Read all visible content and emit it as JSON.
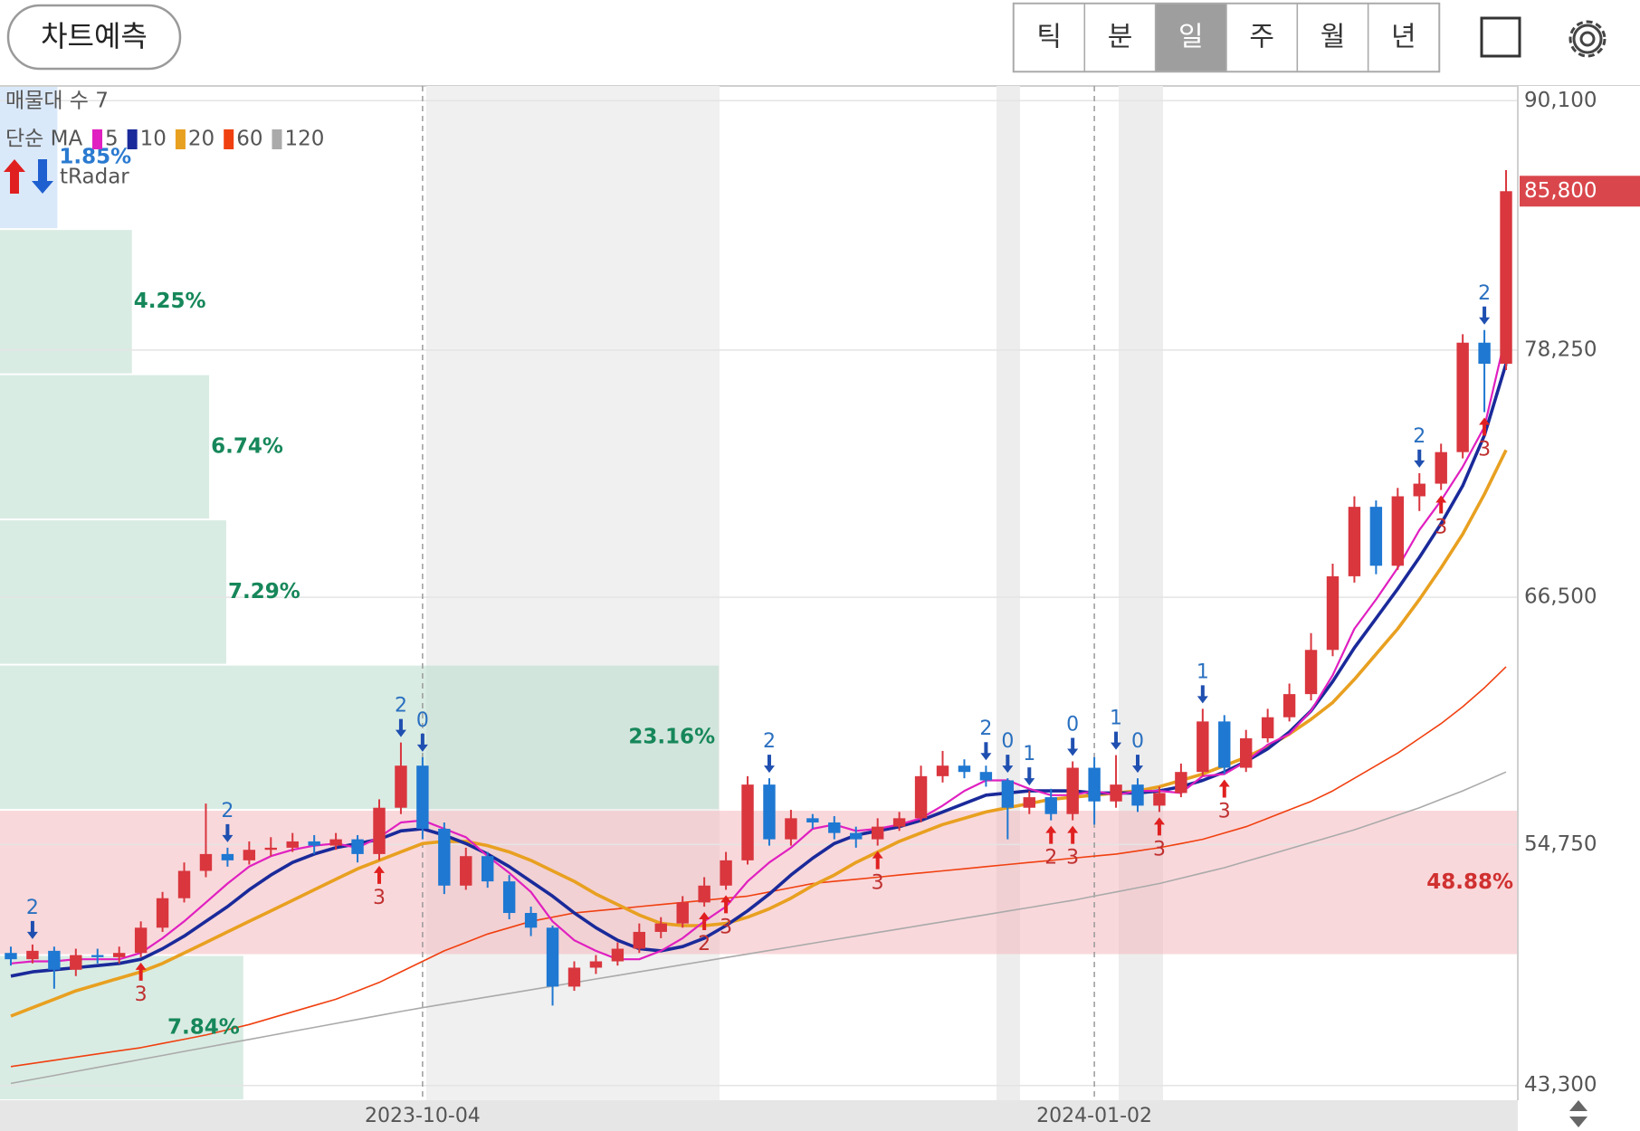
{
  "toolbar": {
    "predict_button": "차트예측",
    "periods": [
      "틱",
      "분",
      "일",
      "주",
      "월",
      "년"
    ],
    "selected_period": 2
  },
  "chart_data": {
    "type": "candlestick",
    "categories": [
      null,
      null,
      null,
      null,
      null,
      null,
      null,
      null,
      null,
      null,
      null,
      null,
      null,
      null,
      null,
      null,
      null,
      null,
      null,
      "2023-10-04",
      null,
      null,
      null,
      null,
      null,
      null,
      null,
      null,
      null,
      null,
      null,
      null,
      null,
      null,
      null,
      null,
      null,
      null,
      null,
      null,
      null,
      null,
      null,
      null,
      null,
      null,
      null,
      null,
      null,
      null,
      "2024-01-02",
      null,
      null,
      null,
      null,
      null,
      null,
      null,
      null,
      null,
      null,
      null,
      null,
      null,
      null,
      null,
      null,
      null,
      null,
      null
    ],
    "open": [
      49600,
      49300,
      49700,
      48800,
      49500,
      49400,
      49600,
      50800,
      52200,
      53500,
      54300,
      54000,
      54500,
      54600,
      54900,
      54700,
      55000,
      54300,
      56500,
      58500,
      55500,
      52800,
      54200,
      53000,
      51500,
      50800,
      48000,
      48900,
      49200,
      49800,
      50600,
      51000,
      52000,
      52800,
      54000,
      57600,
      55000,
      56000,
      55800,
      55300,
      55000,
      55600,
      56000,
      58000,
      58500,
      58200,
      57800,
      56500,
      57000,
      56200,
      58400,
      56800,
      57600,
      56600,
      57200,
      58200,
      60600,
      58400,
      59800,
      60800,
      61900,
      64000,
      67500,
      70800,
      68000,
      71300,
      71900,
      73400,
      78600,
      77600
    ],
    "high": [
      49900,
      50000,
      49900,
      49800,
      49800,
      49900,
      51100,
      52500,
      53900,
      56700,
      54600,
      54900,
      55100,
      55300,
      55200,
      55300,
      55200,
      56900,
      59600,
      58900,
      55800,
      54600,
      54400,
      53300,
      51800,
      50900,
      49200,
      49500,
      50100,
      51000,
      51300,
      52300,
      53200,
      54400,
      58000,
      57900,
      56400,
      56200,
      56100,
      55600,
      56000,
      56300,
      58500,
      59200,
      58800,
      58500,
      57900,
      57300,
      57400,
      58700,
      58900,
      59000,
      57900,
      57500,
      58600,
      61200,
      60900,
      60200,
      61200,
      62400,
      64800,
      68100,
      71300,
      71100,
      71700,
      72400,
      73800,
      79000,
      79200,
      86800
    ],
    "low": [
      49000,
      49100,
      47900,
      48500,
      49100,
      49100,
      49400,
      50600,
      52000,
      53200,
      53700,
      53800,
      54200,
      54400,
      54300,
      54500,
      53900,
      54000,
      56200,
      55000,
      52400,
      52600,
      52700,
      51200,
      50400,
      47100,
      47800,
      48600,
      49000,
      49600,
      50300,
      50800,
      51800,
      52600,
      53800,
      54700,
      54700,
      55500,
      55000,
      54600,
      54700,
      55400,
      55800,
      57700,
      57900,
      57500,
      55000,
      56200,
      55900,
      55900,
      55700,
      56500,
      56300,
      56300,
      57000,
      58000,
      58100,
      58200,
      59600,
      60600,
      61600,
      63700,
      67200,
      67600,
      67800,
      70600,
      71600,
      73100,
      75300,
      77300
    ],
    "close": [
      49300,
      49700,
      48800,
      49500,
      49400,
      49600,
      50800,
      52200,
      53500,
      54300,
      54000,
      54500,
      54600,
      54900,
      54700,
      55000,
      54300,
      56500,
      58500,
      55500,
      52800,
      54200,
      53000,
      51500,
      50800,
      48000,
      48900,
      49200,
      49800,
      50600,
      51000,
      52000,
      52800,
      54000,
      57600,
      55000,
      56000,
      55800,
      55300,
      55000,
      55600,
      56000,
      58000,
      58500,
      58200,
      57800,
      56500,
      57000,
      56200,
      58400,
      56800,
      57600,
      56600,
      57200,
      58200,
      60600,
      58400,
      59800,
      60800,
      61900,
      64000,
      67500,
      70800,
      68000,
      71300,
      71900,
      73400,
      78600,
      77600,
      85800
    ],
    "up_color": "#d9363e",
    "down_color": "#1f78d1",
    "ylim": [
      42600,
      90800
    ],
    "yticks": [
      {
        "value": 90100,
        "label": "90,100"
      },
      {
        "value": 78250,
        "label": "78,250"
      },
      {
        "value": 66500,
        "label": "66,500"
      },
      {
        "value": 54750,
        "label": "54,750"
      },
      {
        "value": 43300,
        "label": "43,300"
      }
    ],
    "grid": true,
    "last_price": {
      "value": 85800,
      "label": "85,800",
      "color": "#d9474c"
    },
    "legend": {
      "profile_label": "매물대 수 7",
      "ma_label": "단순 MA",
      "signal_label": "tRadar"
    },
    "series": [
      {
        "name": "5",
        "color": "#e020c0",
        "values": [
          49100,
          49200,
          49200,
          49300,
          49300,
          49300,
          49600,
          50300,
          51100,
          52000,
          52900,
          53700,
          54200,
          54500,
          54700,
          54800,
          54600,
          55100,
          55800,
          55900,
          55500,
          55100,
          54200,
          53400,
          52500,
          51100,
          50200,
          49700,
          49300,
          49300,
          49700,
          50300,
          51100,
          51800,
          53000,
          53900,
          54600,
          55500,
          55700,
          55400,
          55500,
          55700,
          56000,
          56600,
          57300,
          57800,
          57800,
          57400,
          57100,
          57100,
          57300,
          57100,
          57300,
          57300,
          57200,
          58000,
          58100,
          58700,
          59500,
          60000,
          61100,
          62800,
          65000,
          66400,
          67900,
          69700,
          71100,
          72700,
          74600,
          79000
        ]
      },
      {
        "name": "10",
        "color": "#1a2a9a",
        "values": [
          48500,
          48700,
          48800,
          48900,
          49000,
          49100,
          49300,
          49800,
          50400,
          51100,
          51800,
          52600,
          53300,
          53900,
          54300,
          54600,
          54800,
          55000,
          55400,
          55500,
          55200,
          54800,
          54300,
          53700,
          53000,
          52300,
          51500,
          50800,
          50200,
          49800,
          49700,
          49900,
          50300,
          50900,
          51600,
          52400,
          53300,
          54100,
          54800,
          55200,
          55400,
          55600,
          55900,
          56300,
          56700,
          57100,
          57200,
          57300,
          57300,
          57300,
          57200,
          57200,
          57200,
          57300,
          57500,
          57800,
          58200,
          58700,
          59300,
          60100,
          61100,
          62500,
          64100,
          65500,
          66900,
          68400,
          70000,
          71800,
          74200,
          77600
        ]
      },
      {
        "name": "20",
        "color": "#e8a020",
        "values": [
          46600,
          47000,
          47400,
          47800,
          48100,
          48400,
          48700,
          49100,
          49600,
          50100,
          50600,
          51100,
          51600,
          52100,
          52600,
          53100,
          53600,
          54000,
          54400,
          54800,
          54900,
          54900,
          54700,
          54400,
          54000,
          53500,
          53000,
          52400,
          51900,
          51400,
          51000,
          50900,
          50900,
          51000,
          51300,
          51700,
          52200,
          52800,
          53300,
          53900,
          54400,
          54900,
          55300,
          55700,
          56000,
          56300,
          56500,
          56700,
          56900,
          57000,
          57100,
          57200,
          57300,
          57500,
          57800,
          58100,
          58500,
          58900,
          59400,
          60000,
          60700,
          61500,
          62600,
          63800,
          65000,
          66400,
          67900,
          69500,
          71400,
          73500
        ]
      },
      {
        "name": "60",
        "color": "#f04010",
        "values": [
          44200,
          44350,
          44500,
          44650,
          44800,
          44950,
          45100,
          45300,
          45500,
          45700,
          45950,
          46200,
          46500,
          46800,
          47100,
          47400,
          47800,
          48200,
          48700,
          49200,
          49700,
          50100,
          50500,
          50800,
          51100,
          51300,
          51500,
          51600,
          51700,
          51800,
          51900,
          52000,
          52100,
          52200,
          52300,
          52500,
          52700,
          52900,
          53000,
          53100,
          53200,
          53300,
          53400,
          53500,
          53600,
          53700,
          53800,
          53900,
          54000,
          54100,
          54200,
          54300,
          54450,
          54600,
          54800,
          55000,
          55300,
          55600,
          56000,
          56400,
          56800,
          57300,
          57900,
          58500,
          59100,
          59800,
          60500,
          61300,
          62200,
          63200
        ]
      },
      {
        "name": "120",
        "color": "#aaaaaa",
        "values": [
          43400,
          43590,
          43780,
          43970,
          44160,
          44350,
          44540,
          44730,
          44920,
          45110,
          45300,
          45490,
          45680,
          45870,
          46060,
          46250,
          46440,
          46630,
          46820,
          47000,
          47170,
          47340,
          47510,
          47680,
          47850,
          48020,
          48190,
          48360,
          48530,
          48700,
          48870,
          49040,
          49210,
          49380,
          49550,
          49720,
          49890,
          50060,
          50230,
          50400,
          50570,
          50740,
          50910,
          51080,
          51250,
          51420,
          51590,
          51760,
          51930,
          52100,
          52300,
          52500,
          52700,
          52900,
          53150,
          53400,
          53650,
          53950,
          54250,
          54550,
          54850,
          55150,
          55450,
          55800,
          56150,
          56500,
          56900,
          57300,
          57750,
          58200
        ]
      }
    ],
    "volume_profile": {
      "bins": [
        42600,
        49500,
        56400,
        63300,
        70200,
        77100,
        84000,
        90800
      ],
      "values": [
        7.84,
        48.88,
        23.16,
        7.29,
        6.74,
        4.25,
        1.85
      ],
      "value_labels": [
        "7.84%",
        "48.88%",
        "23.16%",
        "7.29%",
        "6.74%",
        "4.25%",
        "1.85%"
      ],
      "colors": [
        "#b9ddcc",
        "#f4b8bd",
        "#b9ddcc",
        "#b9ddcc",
        "#b9ddcc",
        "#b9ddcc",
        "#bcd7f5"
      ],
      "label_colors": [
        "#16875a",
        "#d03030",
        "#16875a",
        "#16875a",
        "#16875a",
        "#16875a",
        "#2a7ad0"
      ]
    },
    "signals_down": [
      null,
      "2",
      null,
      null,
      null,
      null,
      null,
      null,
      null,
      null,
      "2",
      null,
      null,
      null,
      null,
      null,
      null,
      null,
      "2",
      "0",
      null,
      null,
      null,
      null,
      null,
      null,
      null,
      null,
      null,
      null,
      null,
      null,
      null,
      null,
      null,
      "2",
      null,
      null,
      null,
      null,
      null,
      null,
      null,
      null,
      null,
      "2",
      "0",
      "1",
      null,
      "0",
      null,
      "1",
      "0",
      null,
      null,
      "1",
      null,
      null,
      null,
      null,
      null,
      null,
      null,
      null,
      null,
      "2",
      null,
      null,
      "2",
      null
    ],
    "signals_up": [
      null,
      null,
      null,
      null,
      null,
      null,
      "3",
      null,
      null,
      null,
      null,
      null,
      null,
      null,
      null,
      null,
      null,
      "3",
      null,
      null,
      null,
      null,
      null,
      null,
      null,
      null,
      null,
      null,
      null,
      null,
      null,
      null,
      "2",
      "3",
      null,
      null,
      null,
      null,
      null,
      null,
      "3",
      null,
      null,
      null,
      null,
      null,
      null,
      null,
      "2",
      "3",
      null,
      null,
      null,
      "3",
      null,
      null,
      "3",
      null,
      null,
      null,
      null,
      null,
      null,
      null,
      null,
      null,
      "3",
      null,
      "3",
      null
    ]
  }
}
